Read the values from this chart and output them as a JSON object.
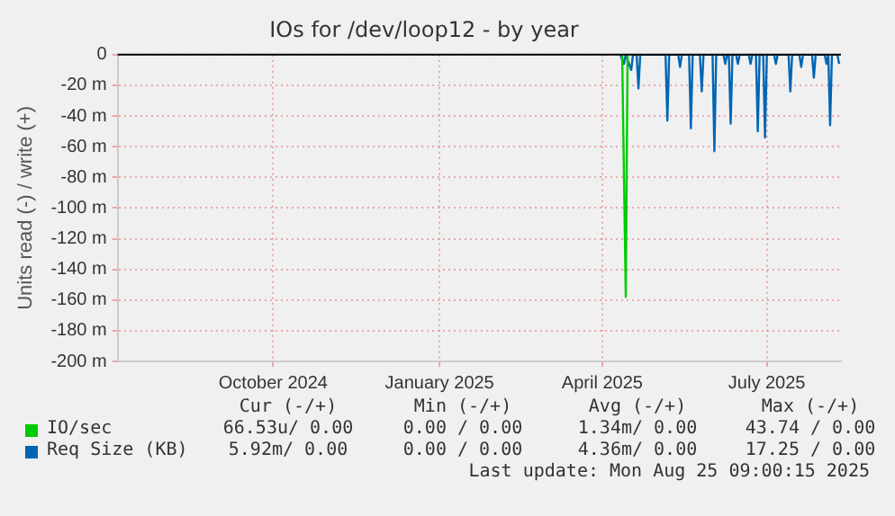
{
  "chart_data": {
    "type": "line",
    "title": "IOs for /dev/loop12 - by year",
    "ylabel": "Units read (-) / write (+)",
    "xlim": [
      "2024-07-22",
      "2025-08-26"
    ],
    "xticks": [
      {
        "value": "2024-10-16",
        "label": "October 2024"
      },
      {
        "value": "2025-01-16",
        "label": "January 2025"
      },
      {
        "value": "2025-04-16",
        "label": "April 2025"
      },
      {
        "value": "2025-07-16",
        "label": "July 2025"
      }
    ],
    "ylim": [
      -200,
      0
    ],
    "yticks": [
      {
        "value": -200,
        "label": "-200 m"
      },
      {
        "value": -180,
        "label": "-180 m"
      },
      {
        "value": -160,
        "label": "-160 m"
      },
      {
        "value": -140,
        "label": "-140 m"
      },
      {
        "value": -120,
        "label": "-120 m"
      },
      {
        "value": -100,
        "label": "-100 m"
      },
      {
        "value": -80,
        "label": "-80 m"
      },
      {
        "value": -60,
        "label": "-60 m"
      },
      {
        "value": -40,
        "label": "-40 m"
      },
      {
        "value": -20,
        "label": "-20 m"
      },
      0
    ],
    "grid": true,
    "legend": "bottom",
    "series": [
      {
        "name": "IO/sec",
        "color": "#00cc00",
        "x": [
          "2025-04-27",
          "2025-04-29",
          "2025-04-30"
        ],
        "values": [
          0,
          -158,
          0
        ]
      },
      {
        "name": "Req Size (KB)",
        "color": "#0066b3",
        "x": [
          "2025-04-26",
          "2025-04-28",
          "2025-04-29",
          "2025-05-02",
          "2025-05-03",
          "2025-05-05",
          "2025-05-06",
          "2025-05-07",
          "2025-05-21",
          "2025-05-22",
          "2025-05-23",
          "2025-05-28",
          "2025-05-29",
          "2025-05-30",
          "2025-06-03",
          "2025-06-04",
          "2025-06-05",
          "2025-06-09",
          "2025-06-10",
          "2025-06-11",
          "2025-06-16",
          "2025-06-17",
          "2025-06-18",
          "2025-06-22",
          "2025-06-23",
          "2025-06-24",
          "2025-06-25",
          "2025-06-26",
          "2025-06-27",
          "2025-06-29",
          "2025-06-30",
          "2025-07-01",
          "2025-07-06",
          "2025-07-07",
          "2025-07-08",
          "2025-07-10",
          "2025-07-11",
          "2025-07-12",
          "2025-07-14",
          "2025-07-15",
          "2025-07-16",
          "2025-07-20",
          "2025-07-21",
          "2025-07-22",
          "2025-07-28",
          "2025-07-29",
          "2025-07-30",
          "2025-08-03",
          "2025-08-04",
          "2025-08-05",
          "2025-08-10",
          "2025-08-11",
          "2025-08-12",
          "2025-08-17",
          "2025-08-18",
          "2025-08-19",
          "2025-08-20",
          "2025-08-21",
          "2025-08-24",
          "2025-08-25"
        ],
        "values": [
          0,
          -6,
          0,
          -10,
          0,
          0,
          -22,
          0,
          0,
          -43,
          0,
          0,
          -8,
          0,
          0,
          -48,
          0,
          0,
          -24,
          0,
          0,
          -63,
          0,
          0,
          -6,
          0,
          0,
          -45,
          0,
          0,
          -6,
          0,
          0,
          -6,
          0,
          0,
          -50,
          0,
          0,
          -54,
          0,
          0,
          -6,
          0,
          0,
          -24,
          0,
          0,
          -8,
          0,
          0,
          -15,
          0,
          0,
          -6,
          0,
          -46,
          0,
          0,
          -6
        ]
      }
    ],
    "annotations": [
      "Cur (-/+)",
      "Min (-/+)",
      "Avg (-/+)",
      "Max (-/+)",
      "66.53u/ 0.00",
      "0.00 / 0.00",
      "1.34m/ 0.00",
      "43.74 / 0.00",
      "5.92m/ 0.00",
      "0.00 / 0.00",
      "4.36m/ 0.00",
      "17.25 / 0.00",
      "Last update: Mon Aug 25 09:00:15 2025"
    ]
  }
}
